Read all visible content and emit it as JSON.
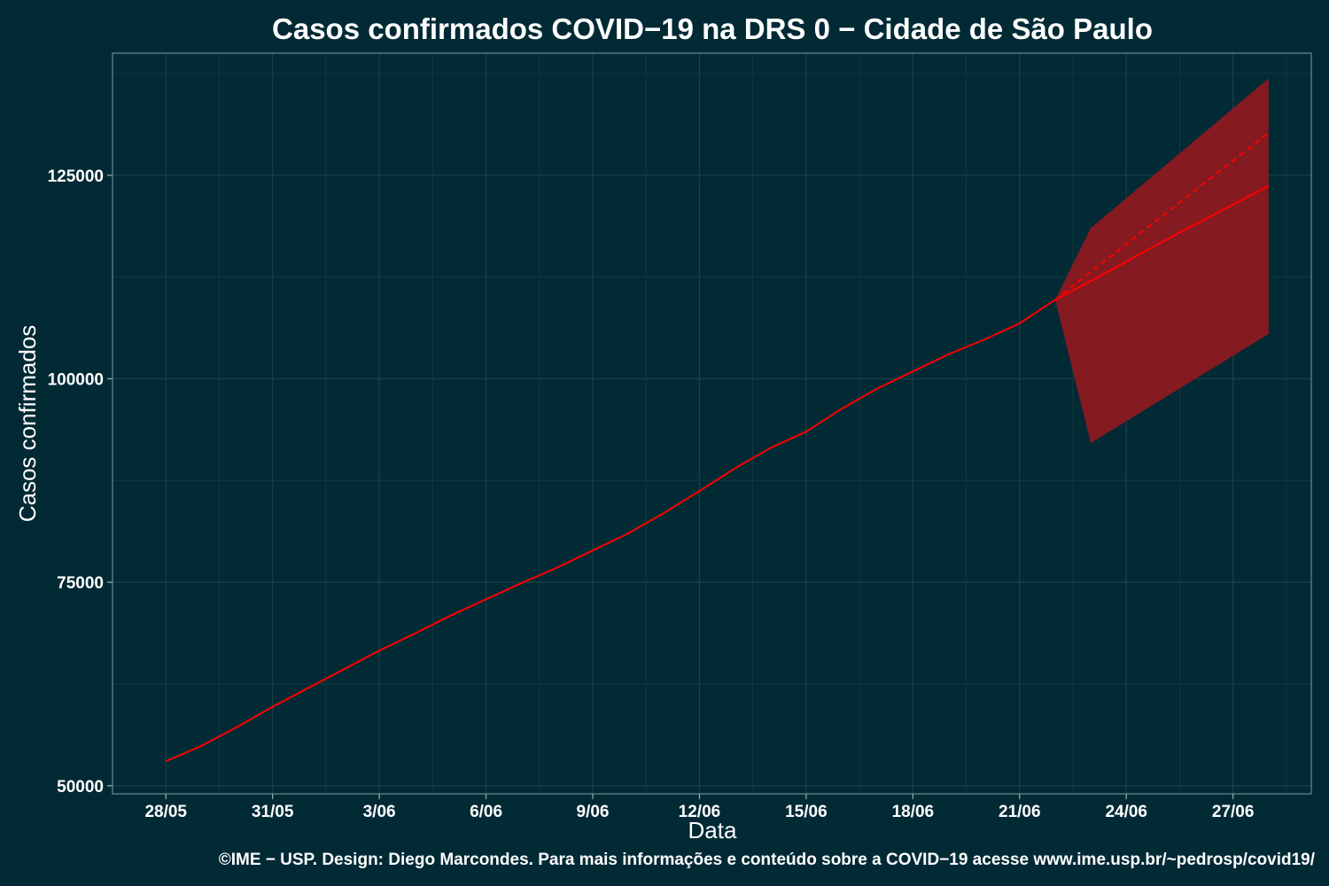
{
  "chart_data": {
    "type": "line",
    "title": "Casos confirmados COVID−19 na DRS 0 − Cidade de São Paulo",
    "xlabel": "Data",
    "ylabel": "Casos confirmados",
    "caption": "©IME − USP. Design: Diego Marcondes. Para mais informações e conteúdo sobre a COVID−19 acesse www.ime.usp.br/~pedrosp/covid19/",
    "x_ticks": [
      {
        "day": 0,
        "label": "28/05"
      },
      {
        "day": 3,
        "label": "31/05"
      },
      {
        "day": 6,
        "label": "3/06"
      },
      {
        "day": 9,
        "label": "6/06"
      },
      {
        "day": 12,
        "label": "9/06"
      },
      {
        "day": 15,
        "label": "12/06"
      },
      {
        "day": 18,
        "label": "15/06"
      },
      {
        "day": 21,
        "label": "18/06"
      },
      {
        "day": 24,
        "label": "21/06"
      },
      {
        "day": 27,
        "label": "24/06"
      },
      {
        "day": 30,
        "label": "27/06"
      }
    ],
    "xlim": [
      -1.5,
      32.2
    ],
    "y_ticks": [
      50000,
      75000,
      100000,
      125000
    ],
    "ylim": [
      49000,
      140000
    ],
    "grid": true,
    "colors": {
      "background": "#022a35",
      "line": "#ff0000",
      "band": "#851a20"
    },
    "series": [
      {
        "style": "observed",
        "x": [
          0,
          1,
          2,
          3,
          4,
          5,
          6,
          7,
          8,
          9,
          10,
          11,
          12,
          13,
          14,
          15,
          16,
          17,
          18,
          19,
          20,
          21,
          22,
          23,
          24,
          25
        ],
        "y": [
          53000,
          54900,
          57200,
          59700,
          62000,
          64300,
          66600,
          68700,
          70900,
          72900,
          74900,
          76800,
          78900,
          81000,
          83500,
          86200,
          89000,
          91500,
          93500,
          96300,
          98800,
          100900,
          103000,
          104800,
          106800,
          109700
        ]
      },
      {
        "style": "forecast",
        "x": [
          25,
          26,
          27,
          28,
          29,
          30,
          31
        ],
        "y": [
          109700,
          112000,
          114400,
          116800,
          119100,
          121400,
          123700
        ]
      },
      {
        "style": "forecast-dashed",
        "x": [
          25,
          31
        ],
        "y": [
          109700,
          130200
        ]
      }
    ],
    "band": {
      "x": [
        25,
        26,
        31
      ],
      "upper": [
        109700,
        118500,
        136900
      ],
      "lower": [
        109700,
        92100,
        105500
      ]
    }
  }
}
